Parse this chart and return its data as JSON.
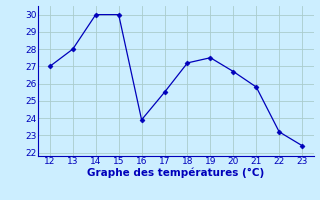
{
  "x": [
    12,
    13,
    14,
    15,
    16,
    17,
    18,
    19,
    20,
    21,
    22,
    23
  ],
  "y": [
    27.0,
    28.0,
    30.0,
    30.0,
    23.9,
    25.5,
    27.2,
    27.5,
    26.7,
    25.8,
    23.2,
    22.4
  ],
  "line_color": "#0000bb",
  "marker": "D",
  "marker_size": 2.5,
  "background_color": "#cceeff",
  "grid_color": "#aacccc",
  "xlabel": "Graphe des températures (°C)",
  "xlabel_color": "#0000bb",
  "tick_color": "#0000bb",
  "axis_color": "#0000bb",
  "xlim": [
    11.5,
    23.5
  ],
  "ylim": [
    21.8,
    30.5
  ],
  "xticks": [
    12,
    13,
    14,
    15,
    16,
    17,
    18,
    19,
    20,
    21,
    22,
    23
  ],
  "yticks": [
    22,
    23,
    24,
    25,
    26,
    27,
    28,
    29,
    30
  ],
  "tick_fontsize": 6.5,
  "xlabel_fontsize": 7.5
}
